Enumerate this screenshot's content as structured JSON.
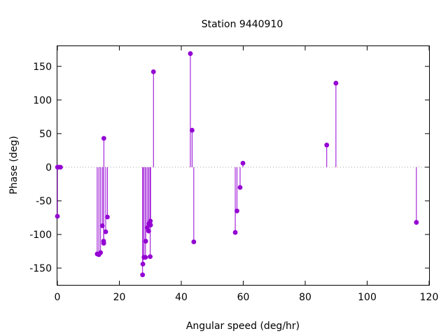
{
  "chart_data": {
    "type": "scatter",
    "title": "Station 9440910",
    "xlabel": "Angular speed (deg/hr)",
    "ylabel": "Phase (deg)",
    "xlim": [
      0,
      120
    ],
    "ylim": [
      -175,
      180
    ],
    "xticks": [
      "0",
      "20",
      "40",
      "60",
      "80",
      "100",
      "120"
    ],
    "yticks": [
      "-150",
      "-100",
      "-50",
      "0",
      "50",
      "100",
      "150"
    ],
    "grid": false,
    "zero_line": "dotted",
    "style": "impulses with points",
    "color": "#9400d3",
    "series": [
      {
        "points": [
          {
            "x": 0.0,
            "y": -73
          },
          {
            "x": 0.04,
            "y": 0
          },
          {
            "x": 0.08,
            "y": 0
          },
          {
            "x": 0.5,
            "y": 0
          },
          {
            "x": 1.0,
            "y": 0
          },
          {
            "x": 12.85,
            "y": -129
          },
          {
            "x": 13.4,
            "y": -130
          },
          {
            "x": 13.94,
            "y": -127
          },
          {
            "x": 14.5,
            "y": -87
          },
          {
            "x": 14.92,
            "y": -110
          },
          {
            "x": 14.96,
            "y": -113
          },
          {
            "x": 15.0,
            "y": 43
          },
          {
            "x": 15.59,
            "y": -96
          },
          {
            "x": 16.14,
            "y": -74
          },
          {
            "x": 27.5,
            "y": -160
          },
          {
            "x": 27.6,
            "y": -144
          },
          {
            "x": 27.97,
            "y": -134
          },
          {
            "x": 28.44,
            "y": -134
          },
          {
            "x": 28.51,
            "y": -110
          },
          {
            "x": 28.98,
            "y": -90
          },
          {
            "x": 29.46,
            "y": -95
          },
          {
            "x": 29.53,
            "y": -84
          },
          {
            "x": 29.96,
            "y": -133
          },
          {
            "x": 30.0,
            "y": -80
          },
          {
            "x": 30.08,
            "y": -86
          },
          {
            "x": 31.02,
            "y": 142
          },
          {
            "x": 42.93,
            "y": 169
          },
          {
            "x": 43.48,
            "y": 55
          },
          {
            "x": 44.03,
            "y": -111
          },
          {
            "x": 57.42,
            "y": -97
          },
          {
            "x": 57.97,
            "y": -65
          },
          {
            "x": 58.98,
            "y": -30
          },
          {
            "x": 59.9,
            "y": 6
          },
          {
            "x": 86.95,
            "y": 33
          },
          {
            "x": 89.92,
            "y": 125
          },
          {
            "x": 115.9,
            "y": -82
          }
        ]
      }
    ]
  }
}
